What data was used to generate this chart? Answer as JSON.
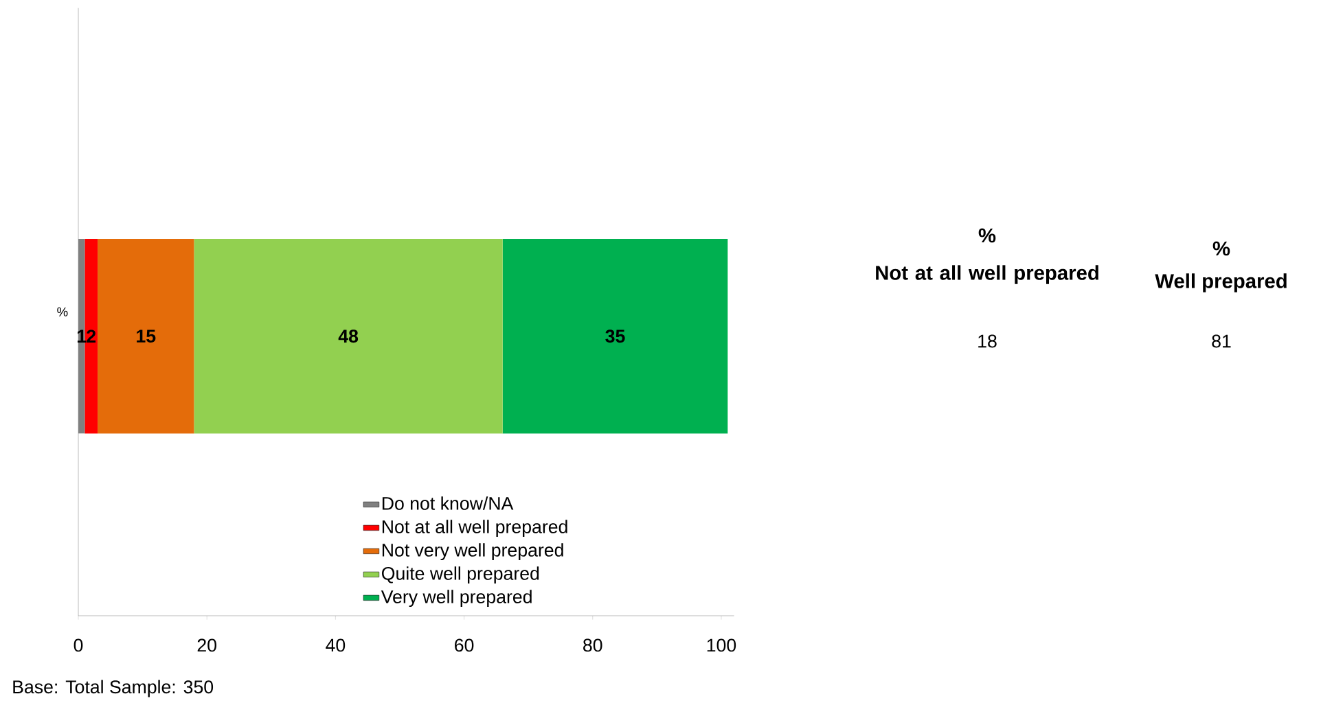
{
  "chart_data": {
    "type": "bar",
    "orientation": "horizontal",
    "stacked": true,
    "categories": [
      null
    ],
    "series": [
      {
        "name": "Do not know/NA",
        "color": "#808080",
        "values": [
          1
        ]
      },
      {
        "name": "Not at all well prepared",
        "color": "#ff0000",
        "values": [
          2
        ]
      },
      {
        "name": "Not very well prepared",
        "color": "#e46c0a",
        "values": [
          15
        ]
      },
      {
        "name": "Quite well prepared",
        "color": "#92d050",
        "values": [
          48
        ]
      },
      {
        "name": "Very well prepared",
        "color": "#00b050",
        "values": [
          35
        ]
      }
    ],
    "xlim": [
      0,
      102
    ],
    "xticks": [
      0,
      20,
      40,
      60,
      80,
      100
    ],
    "ylabel": "%",
    "data_labels": true,
    "legend": "bottom",
    "annotations": [
      "%",
      "Not at all well prepared",
      "18",
      "%",
      "Well prepared",
      "81",
      "Base: Total Sample: 350"
    ]
  }
}
